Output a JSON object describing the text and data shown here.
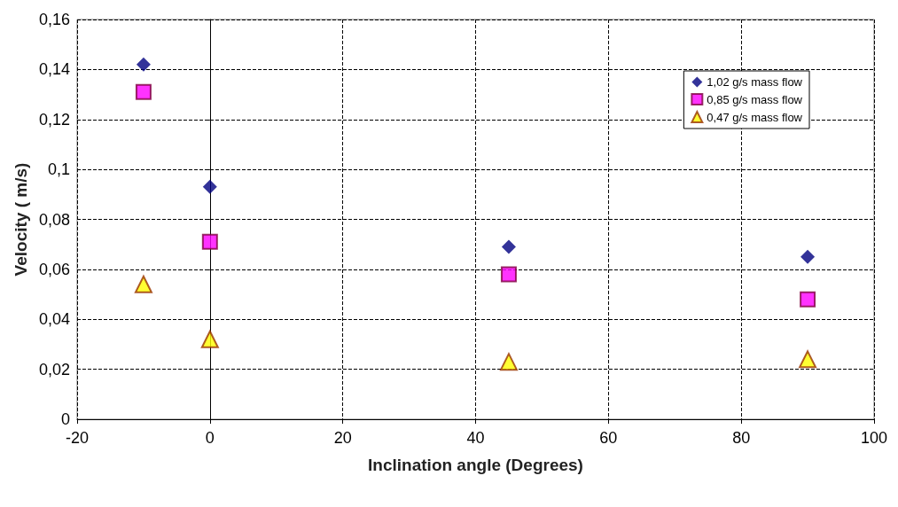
{
  "chart_data": {
    "type": "scatter",
    "xlabel": "Inclination angle (Degrees)",
    "ylabel": "Velocity ( m/s)",
    "x": [
      -10,
      0,
      45,
      90
    ],
    "series": [
      {
        "name": "1,02 g/s mass flow",
        "color": "#000080",
        "marker": "diamond",
        "values": [
          0.142,
          0.093,
          0.069,
          0.065
        ]
      },
      {
        "name": "0,85 g/s mass flow",
        "color": "#ff00ff",
        "marker": "square",
        "values": [
          0.131,
          0.071,
          0.058,
          0.048
        ]
      },
      {
        "name": "0,47 g/s mass flow",
        "color": "#ffff00",
        "marker": "triangle",
        "values": [
          0.054,
          0.032,
          0.023,
          0.024
        ]
      }
    ],
    "xlim": [
      -20,
      100
    ],
    "xticks": [
      -20,
      0,
      20,
      40,
      60,
      80,
      100
    ],
    "ylim": [
      0,
      0.16
    ],
    "yticks": [
      0,
      {
        "value": 0.02,
        "label": "0,02"
      },
      {
        "value": 0.04,
        "label": "0,04"
      },
      {
        "value": 0.06,
        "label": "0,06"
      },
      {
        "value": 0.08,
        "label": "0,08"
      },
      {
        "value": 0.1,
        "label": "0,1"
      },
      {
        "value": 0.12,
        "label": "0,12"
      },
      {
        "value": 0.14,
        "label": "0,14"
      },
      {
        "value": 0.16,
        "label": "0,16"
      }
    ],
    "grid": true,
    "legend": "top right"
  }
}
